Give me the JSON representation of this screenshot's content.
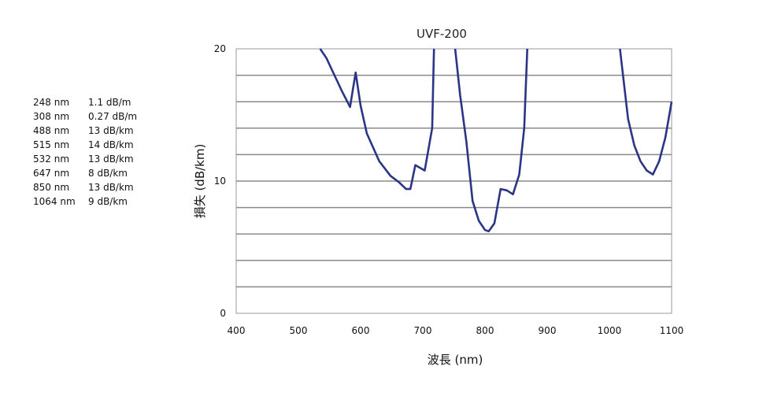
{
  "chart_data": {
    "type": "line",
    "title": "UVF-200",
    "xlabel": "波長 (nm)",
    "ylabel": "損失 (dB/km)",
    "xlim": [
      400,
      1100
    ],
    "ylim": [
      0,
      20
    ],
    "x_ticks": [
      "400",
      "500",
      "600",
      "700",
      "800",
      "900",
      "1000",
      "1100"
    ],
    "y_ticks": [
      "0",
      "10",
      "20"
    ],
    "grid": "horizontal",
    "series": [
      {
        "color": "#2b3585",
        "segments": [
          [
            [
              535,
              20
            ],
            [
              545,
              19.3
            ],
            [
              560,
              17.8
            ],
            [
              570,
              16.8
            ],
            [
              583,
              15.6
            ],
            [
              592,
              18.2
            ],
            [
              600,
              15.7
            ],
            [
              610,
              13.6
            ],
            [
              630,
              11.5
            ],
            [
              648,
              10.4
            ],
            [
              662,
              9.9
            ],
            [
              673,
              9.4
            ],
            [
              680,
              9.4
            ],
            [
              688,
              11.2
            ],
            [
              703,
              10.8
            ],
            [
              715,
              14.0
            ],
            [
              718,
              20
            ]
          ],
          [
            [
              752,
              20
            ],
            [
              760,
              16.5
            ],
            [
              770,
              13.0
            ],
            [
              780,
              8.5
            ],
            [
              790,
              7.0
            ],
            [
              800,
              6.3
            ],
            [
              806,
              6.2
            ],
            [
              815,
              6.8
            ],
            [
              825,
              9.4
            ],
            [
              835,
              9.3
            ],
            [
              845,
              9.0
            ],
            [
              855,
              10.5
            ],
            [
              863,
              14.0
            ],
            [
              868,
              20
            ]
          ],
          [
            [
              1017,
              20
            ],
            [
              1030,
              14.7
            ],
            [
              1040,
              12.7
            ],
            [
              1050,
              11.5
            ],
            [
              1060,
              10.8
            ],
            [
              1070,
              10.5
            ],
            [
              1080,
              11.5
            ],
            [
              1090,
              13.3
            ],
            [
              1100,
              16.0
            ]
          ]
        ]
      }
    ]
  },
  "legend_table": [
    {
      "wavelength": "248 nm",
      "loss": "1.1 dB/m"
    },
    {
      "wavelength": "308 nm",
      "loss": "0.27 dB/m"
    },
    {
      "wavelength": "488 nm",
      "loss": "13 dB/km"
    },
    {
      "wavelength": "515 nm",
      "loss": "14 dB/km"
    },
    {
      "wavelength": "532 nm",
      "loss": "13 dB/km"
    },
    {
      "wavelength": "647 nm",
      "loss": "8 dB/km"
    },
    {
      "wavelength": "850 nm",
      "loss": "13 dB/km"
    },
    {
      "wavelength": "1064 nm",
      "loss": "9 dB/km"
    }
  ]
}
